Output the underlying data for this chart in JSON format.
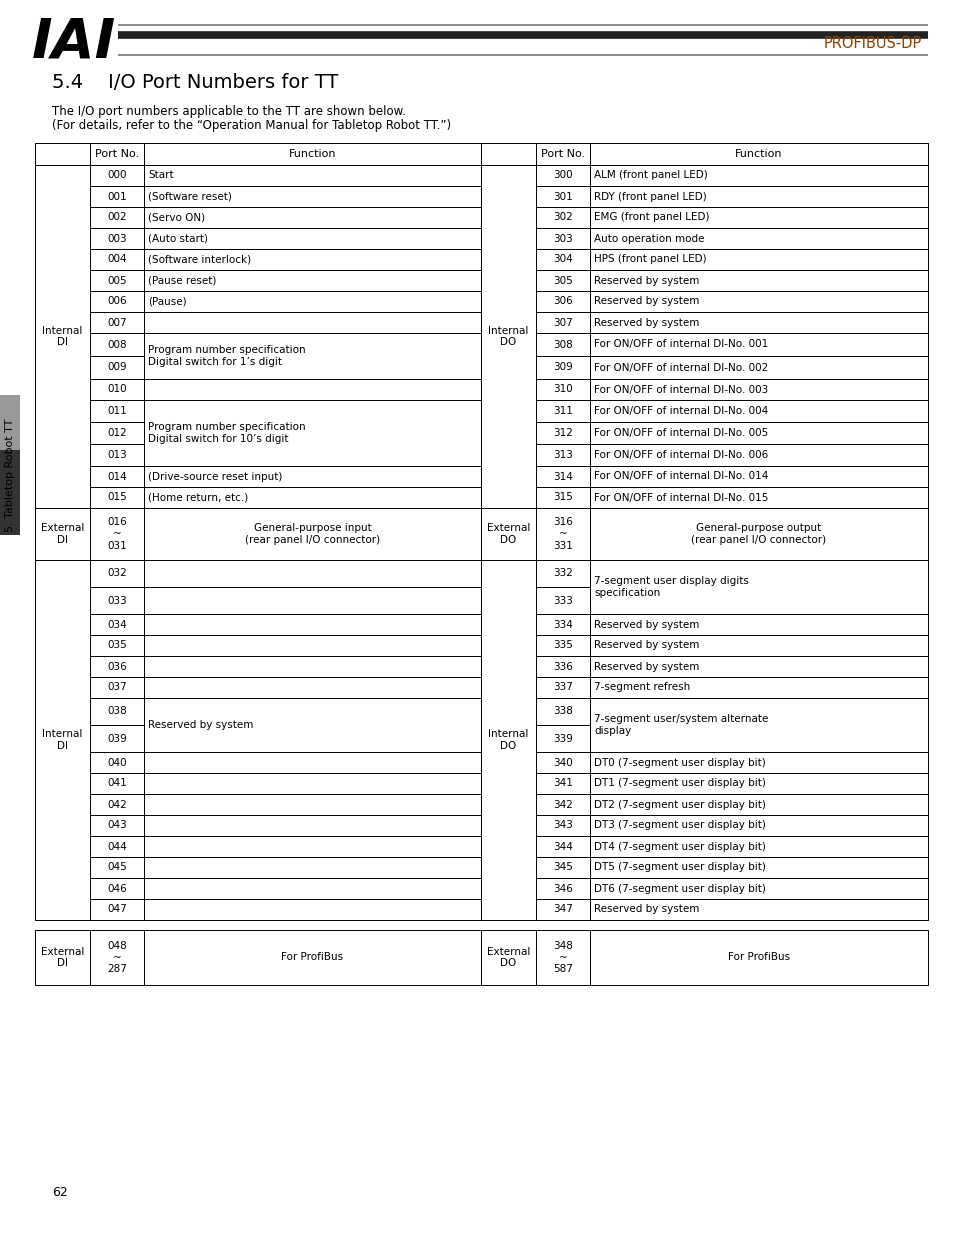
{
  "title": "5.4    I/O Port Numbers for TT",
  "subtitle1": "The I/O port numbers applicable to the TT are shown below.",
  "subtitle2": "(For details, refer to the “Operation Manual for Tabletop Robot TT.”)",
  "background": "#ffffff",
  "profibus_text": "PROFIBUS-DP",
  "profibus_color": "#8B4000",
  "section_label": "5. Tabletop Robot TT",
  "page_number": "62",
  "s1_left": [
    [
      "000",
      "Start",
      1
    ],
    [
      "001",
      "(Software reset)",
      1
    ],
    [
      "002",
      "(Servo ON)",
      1
    ],
    [
      "003",
      "(Auto start)",
      1
    ],
    [
      "004",
      "(Software interlock)",
      1
    ],
    [
      "005",
      "(Pause reset)",
      1
    ],
    [
      "006",
      "(Pause)",
      1
    ],
    [
      "007",
      "",
      1
    ],
    [
      "008",
      "Program number specification\nDigital switch for 1’s digit",
      2
    ],
    [
      "009",
      null,
      0
    ],
    [
      "010",
      "",
      1
    ],
    [
      "011",
      "Program number specification\nDigital switch for 10’s digit",
      3
    ],
    [
      "012",
      null,
      0
    ],
    [
      "013",
      null,
      0
    ],
    [
      "014",
      "(Drive-source reset input)",
      1
    ],
    [
      "015",
      "(Home return, etc.)",
      1
    ]
  ],
  "s1_right": [
    [
      "300",
      "ALM (front panel LED)",
      1
    ],
    [
      "301",
      "RDY (front panel LED)",
      1
    ],
    [
      "302",
      "EMG (front panel LED)",
      1
    ],
    [
      "303",
      "Auto operation mode",
      1
    ],
    [
      "304",
      "HPS (front panel LED)",
      1
    ],
    [
      "305",
      "Reserved by system",
      1
    ],
    [
      "306",
      "Reserved by system",
      1
    ],
    [
      "307",
      "Reserved by system",
      1
    ],
    [
      "308",
      "For ON/OFF of internal DI-No. 001",
      1
    ],
    [
      "309",
      "For ON/OFF of internal DI-No. 002",
      1
    ],
    [
      "310",
      "For ON/OFF of internal DI-No. 003",
      1
    ],
    [
      "311",
      "For ON/OFF of internal DI-No. 004",
      1
    ],
    [
      "312",
      "For ON/OFF of internal DI-No. 005",
      1
    ],
    [
      "313",
      "For ON/OFF of internal DI-No. 006",
      1
    ],
    [
      "314",
      "For ON/OFF of internal DI-No. 014",
      1
    ],
    [
      "315",
      "For ON/OFF of internal DI-No. 015",
      1
    ]
  ],
  "s3_left": [
    [
      "032",
      "",
      1
    ],
    [
      "033",
      "",
      1
    ],
    [
      "034",
      "",
      1
    ],
    [
      "035",
      "",
      1
    ],
    [
      "036",
      "",
      1
    ],
    [
      "037",
      "",
      1
    ],
    [
      "038",
      "Reserved by system",
      2
    ],
    [
      "039",
      null,
      0
    ],
    [
      "040",
      "",
      1
    ],
    [
      "041",
      "",
      1
    ],
    [
      "042",
      "",
      1
    ],
    [
      "043",
      "",
      1
    ],
    [
      "044",
      "",
      1
    ],
    [
      "045",
      "",
      1
    ],
    [
      "046",
      "",
      1
    ],
    [
      "047",
      "",
      1
    ]
  ],
  "s3_right": [
    [
      "332",
      "7-segment user display digits\nspecification",
      2
    ],
    [
      "333",
      null,
      0
    ],
    [
      "334",
      "Reserved by system",
      1
    ],
    [
      "335",
      "Reserved by system",
      1
    ],
    [
      "336",
      "Reserved by system",
      1
    ],
    [
      "337",
      "7-segment refresh",
      1
    ],
    [
      "338",
      "7-segment user/system alternate\ndisplay",
      2
    ],
    [
      "339",
      null,
      0
    ],
    [
      "340",
      "DT0 (7-segment user display bit)",
      1
    ],
    [
      "341",
      "DT1 (7-segment user display bit)",
      1
    ],
    [
      "342",
      "DT2 (7-segment user display bit)",
      1
    ],
    [
      "343",
      "DT3 (7-segment user display bit)",
      1
    ],
    [
      "344",
      "DT4 (7-segment user display bit)",
      1
    ],
    [
      "345",
      "DT5 (7-segment user display bit)",
      1
    ],
    [
      "346",
      "DT6 (7-segment user display bit)",
      1
    ],
    [
      "347",
      "Reserved by system",
      1
    ]
  ]
}
